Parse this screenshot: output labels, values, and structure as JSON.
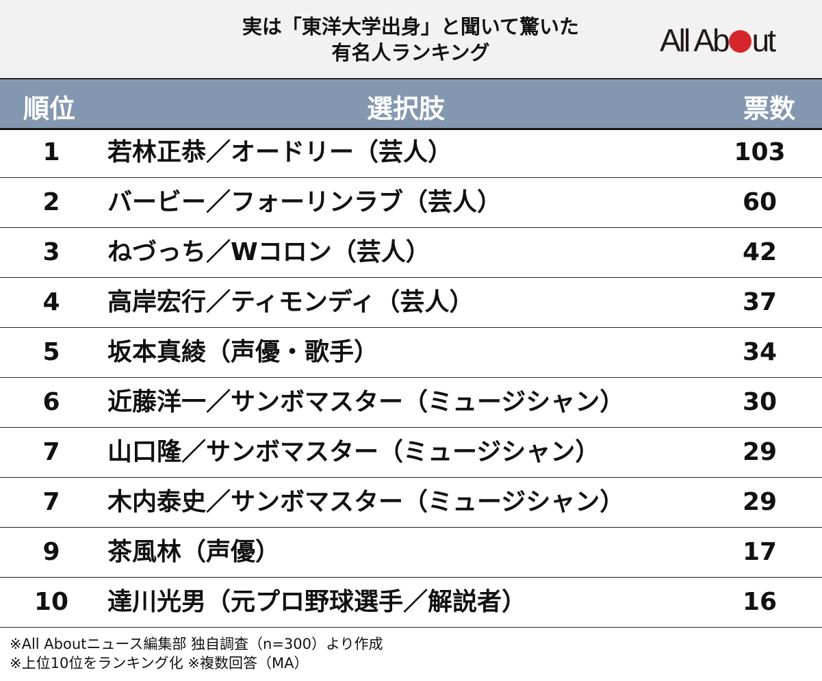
{
  "title": {
    "line1": "実は「東洋大学出身」と聞いて驚いた",
    "line2": "有名人ランキング"
  },
  "logo": {
    "text_left": "All Ab",
    "text_right": "ut",
    "dot_color": "#d7262b"
  },
  "colors": {
    "header_bg": "#8497b0",
    "title_bg": "#f2f2f2"
  },
  "chart_data": {
    "type": "table",
    "columns": [
      "順位",
      "選択肢",
      "票数"
    ],
    "rows": [
      {
        "rank": "1",
        "name": "若林正恭／オードリー（芸人）",
        "votes": "103"
      },
      {
        "rank": "2",
        "name": "バービー／フォーリンラブ（芸人）",
        "votes": "60"
      },
      {
        "rank": "3",
        "name": "ねづっち／Wコロン（芸人）",
        "votes": "42"
      },
      {
        "rank": "4",
        "name": "高岸宏行／ティモンディ（芸人）",
        "votes": "37"
      },
      {
        "rank": "5",
        "name": "坂本真綾（声優・歌手）",
        "votes": "34"
      },
      {
        "rank": "6",
        "name": "近藤洋一／サンボマスター（ミュージシャン）",
        "votes": "30"
      },
      {
        "rank": "7",
        "name": "山口隆／サンボマスター（ミュージシャン）",
        "votes": "29"
      },
      {
        "rank": "7",
        "name": "木内泰史／サンボマスター（ミュージシャン）",
        "votes": "29"
      },
      {
        "rank": "9",
        "name": "茶風林（声優）",
        "votes": "17"
      },
      {
        "rank": "10",
        "name": "達川光男（元プロ野球選手／解説者）",
        "votes": "16"
      }
    ]
  },
  "notes": [
    "※All Aboutニュース編集部 独自調査（n=300）より作成",
    "※上位10位をランキング化 ※複数回答（MA）"
  ]
}
